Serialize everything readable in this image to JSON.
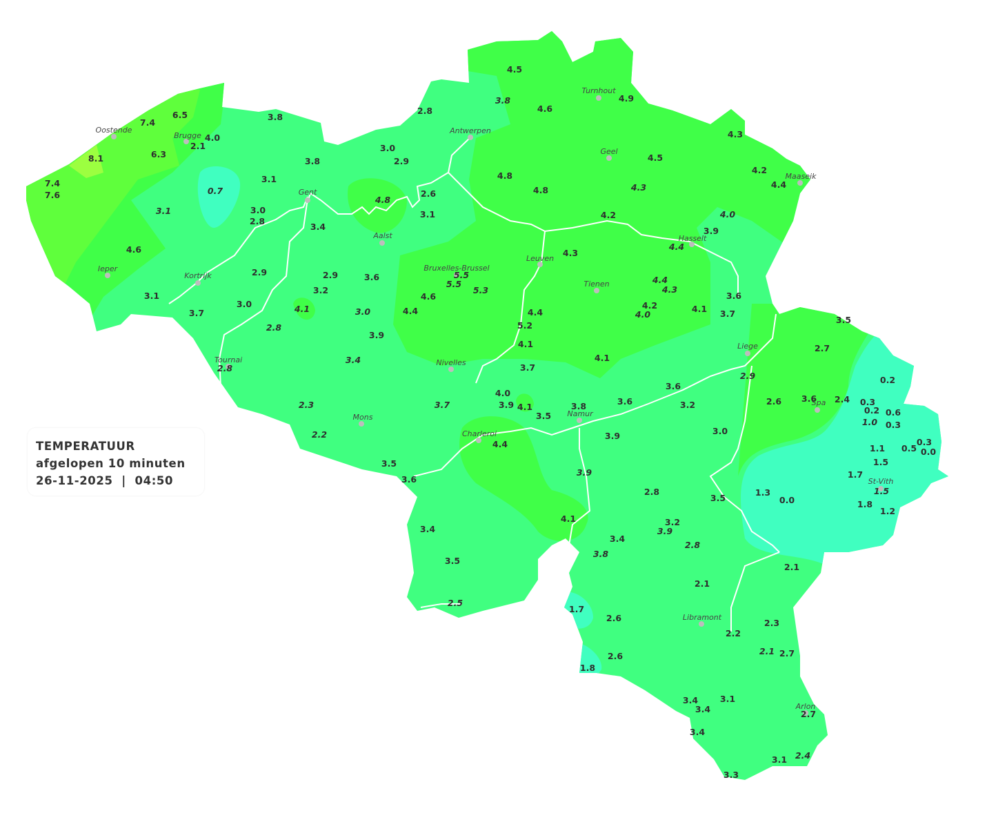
{
  "legend": {
    "title": "TEMPERATUUR",
    "subtitle": "afgelopen 10 minuten",
    "datetime": "26-11-2025  |  04:50"
  },
  "colors": {
    "base": "#40ff80",
    "green": "#40ff48",
    "lime": "#5fff3c",
    "yellow": "#9cff40",
    "cyan": "#40ffc0",
    "river": "#ffffff",
    "text": "#2e2e2e",
    "city_dot": "#bdbdbd"
  },
  "cities": [
    "Oostende",
    "Brugge",
    "Antwerpen",
    "Turnhout",
    "Geel",
    "Maaseik",
    "Gent",
    "Aalst",
    "Hasselt",
    "Leuven",
    "Ieper",
    "Kortrijk",
    "Bruxelles-Brussel",
    "Tienen",
    "Liege",
    "Tournai",
    "Nivelles",
    "Spa",
    "Mons",
    "Namur",
    "Charleroi",
    "St-Vith",
    "Libramont",
    "Arlon"
  ],
  "readings": [
    {
      "v": "4.5"
    },
    {
      "v": "3.8",
      "i": true
    },
    {
      "v": "4.6"
    },
    {
      "v": "4.9"
    },
    {
      "v": "2.8"
    },
    {
      "v": "3.8"
    },
    {
      "v": "6.5"
    },
    {
      "v": "7.4"
    },
    {
      "v": "4.0"
    },
    {
      "v": "2.1"
    },
    {
      "v": "6.3"
    },
    {
      "v": "8.1"
    },
    {
      "v": "3.0"
    },
    {
      "v": "2.9"
    },
    {
      "v": "3.8"
    },
    {
      "v": "4.3"
    },
    {
      "v": "4.5"
    },
    {
      "v": "4.8"
    },
    {
      "v": "4.8"
    },
    {
      "v": "4.3",
      "i": true
    },
    {
      "v": "4.2"
    },
    {
      "v": "4.4"
    },
    {
      "v": "7.4"
    },
    {
      "v": "7.6"
    },
    {
      "v": "3.1"
    },
    {
      "v": "0.7",
      "i": true
    },
    {
      "v": "2.6"
    },
    {
      "v": "4.8",
      "i": true
    },
    {
      "v": "3.1",
      "i": true
    },
    {
      "v": "3.0"
    },
    {
      "v": "2.8"
    },
    {
      "v": "3.1"
    },
    {
      "v": "4.2"
    },
    {
      "v": "4.0",
      "i": true
    },
    {
      "v": "3.4"
    },
    {
      "v": "3.9"
    },
    {
      "v": "4.4",
      "i": true
    },
    {
      "v": "4.3"
    },
    {
      "v": "4.6"
    },
    {
      "v": "2.9"
    },
    {
      "v": "2.9"
    },
    {
      "v": "3.6"
    },
    {
      "v": "5.5",
      "i": true
    },
    {
      "v": "5.5",
      "i": true
    },
    {
      "v": "5.3",
      "i": true
    },
    {
      "v": "4.4",
      "i": true
    },
    {
      "v": "4.3",
      "i": true
    },
    {
      "v": "3.2"
    },
    {
      "v": "3.1"
    },
    {
      "v": "4.6"
    },
    {
      "v": "3.6"
    },
    {
      "v": "3.0"
    },
    {
      "v": "4.1",
      "i": true
    },
    {
      "v": "3.0",
      "i": true
    },
    {
      "v": "4.4"
    },
    {
      "v": "4.4"
    },
    {
      "v": "4.2"
    },
    {
      "v": "4.0",
      "i": true
    },
    {
      "v": "4.1"
    },
    {
      "v": "3.7"
    },
    {
      "v": "3.7"
    },
    {
      "v": "3.5"
    },
    {
      "v": "5.2"
    },
    {
      "v": "2.8",
      "i": true
    },
    {
      "v": "3.9"
    },
    {
      "v": "4.1"
    },
    {
      "v": "2.7"
    },
    {
      "v": "3.4",
      "i": true
    },
    {
      "v": "4.1"
    },
    {
      "v": "3.7"
    },
    {
      "v": "2.8",
      "i": true
    },
    {
      "v": "2.9",
      "i": true
    },
    {
      "v": "0.2"
    },
    {
      "v": "3.6"
    },
    {
      "v": "4.0"
    },
    {
      "v": "2.6"
    },
    {
      "v": "3.6"
    },
    {
      "v": "2.4"
    },
    {
      "v": "0.3"
    },
    {
      "v": "3.6"
    },
    {
      "v": "3.2"
    },
    {
      "v": "3.9"
    },
    {
      "v": "4.1"
    },
    {
      "v": "2.3",
      "i": true
    },
    {
      "v": "3.7",
      "i": true
    },
    {
      "v": "3.8"
    },
    {
      "v": "0.2"
    },
    {
      "v": "0.6"
    },
    {
      "v": "3.5"
    },
    {
      "v": "1.0",
      "i": true
    },
    {
      "v": "0.3"
    },
    {
      "v": "2.2",
      "i": true
    },
    {
      "v": "3.0"
    },
    {
      "v": "3.9"
    },
    {
      "v": "0.3"
    },
    {
      "v": "4.4"
    },
    {
      "v": "1.1"
    },
    {
      "v": "0.5"
    },
    {
      "v": "0.0"
    },
    {
      "v": "1.5"
    },
    {
      "v": "3.5"
    },
    {
      "v": "1.7"
    },
    {
      "v": "3.9",
      "i": true
    },
    {
      "v": "3.6"
    },
    {
      "v": "1.5",
      "i": true
    },
    {
      "v": "2.8"
    },
    {
      "v": "3.5"
    },
    {
      "v": "1.3"
    },
    {
      "v": "0.0"
    },
    {
      "v": "1.8"
    },
    {
      "v": "1.2"
    },
    {
      "v": "4.1"
    },
    {
      "v": "3.2"
    },
    {
      "v": "3.9",
      "i": true
    },
    {
      "v": "3.4"
    },
    {
      "v": "3.4"
    },
    {
      "v": "2.8",
      "i": true
    },
    {
      "v": "3.8",
      "i": true
    },
    {
      "v": "3.5"
    },
    {
      "v": "2.1"
    },
    {
      "v": "2.1"
    },
    {
      "v": "2.5",
      "i": true
    },
    {
      "v": "1.7"
    },
    {
      "v": "2.6"
    },
    {
      "v": "2.3"
    },
    {
      "v": "2.2"
    },
    {
      "v": "2.1",
      "i": true
    },
    {
      "v": "2.7"
    },
    {
      "v": "2.6"
    },
    {
      "v": "1.8"
    },
    {
      "v": "3.4"
    },
    {
      "v": "3.1"
    },
    {
      "v": "3.4"
    },
    {
      "v": "2.7"
    },
    {
      "v": "3.4"
    },
    {
      "v": "3.1"
    },
    {
      "v": "2.4",
      "i": true
    },
    {
      "v": "3.3"
    }
  ]
}
